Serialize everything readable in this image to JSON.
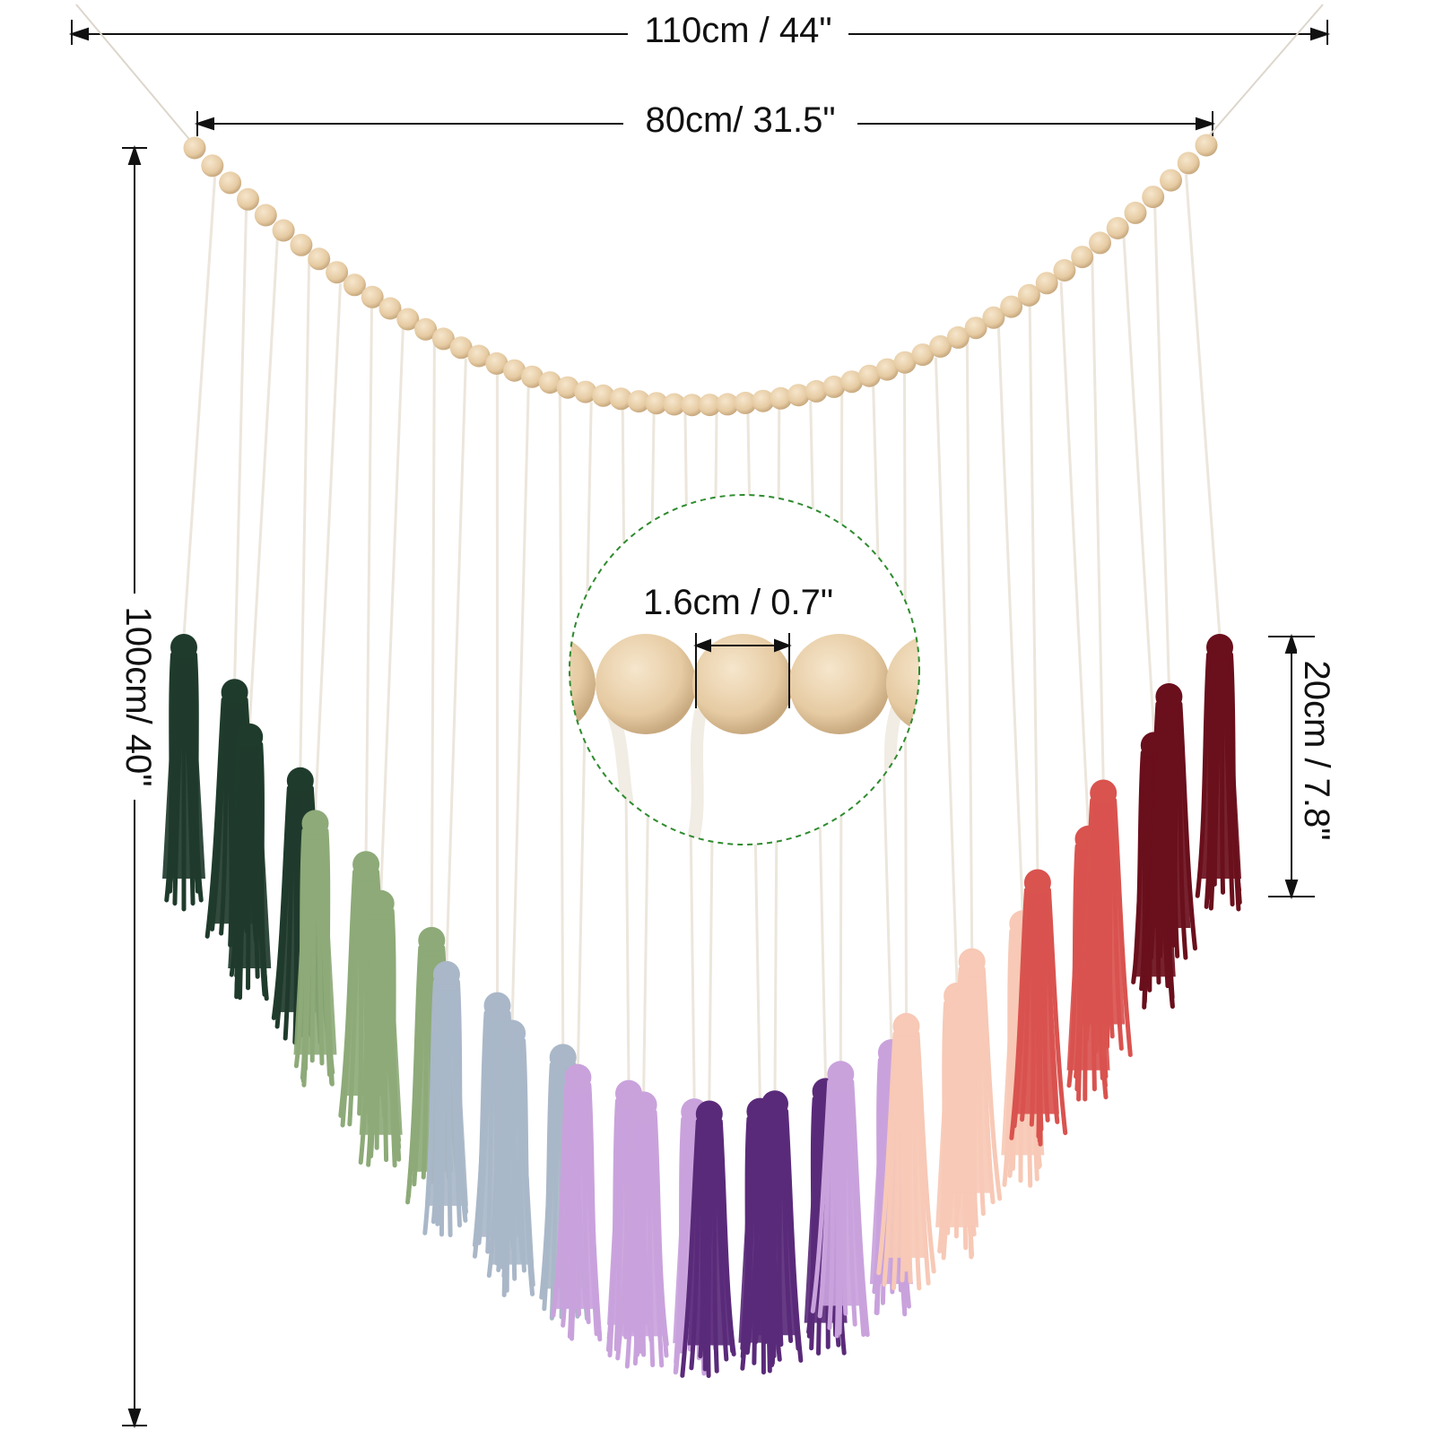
{
  "product": {
    "image_kind": "product-dimension-photo",
    "dimensions": {
      "total_width_label": "110cm / 44\"",
      "bead_strand_width_label": "80cm/ 31.5\"",
      "total_height_label": "100cm/ 40\"",
      "tassel_length_label": "20cm / 7.8\"",
      "bead_diameter_label": "1.6cm / 0.7\""
    },
    "colors": {
      "bead": "#e9d2b0",
      "bead_shadow": "#c9ad86",
      "string": "#ece6dc",
      "callout_ring": "#2e8b2e",
      "dark_green": "#1f3b2c",
      "sage_green": "#8daa78",
      "light_blue": "#a9b7c8",
      "lavender": "#c9a2dc",
      "purple": "#5a2a7a",
      "peach": "#f7c9b6",
      "coral": "#d9534f",
      "burgundy": "#6a0f1c"
    }
  }
}
